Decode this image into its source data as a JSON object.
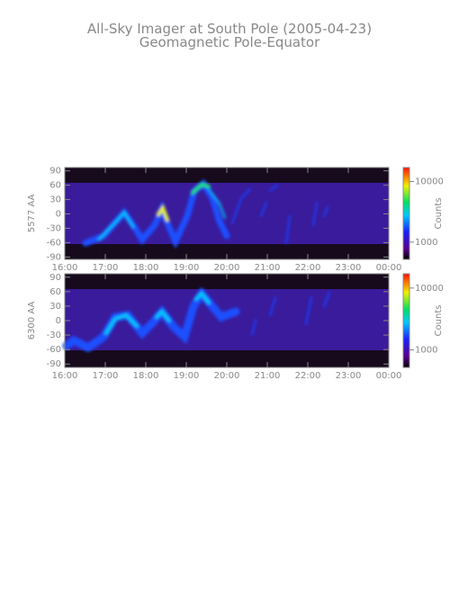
{
  "header": {
    "title": "All-Sky Imager at South Pole (2005-04-23)",
    "subtitle": "Geomagnetic Pole-Equator"
  },
  "chart_data": [
    {
      "type": "heatmap",
      "ylabel": "5577 AA",
      "xlim": [
        16,
        24
      ],
      "xticks": [
        {
          "value": 16,
          "label": "16:00"
        },
        {
          "value": 17,
          "label": "17:00"
        },
        {
          "value": 18,
          "label": "18:00"
        },
        {
          "value": 19,
          "label": "19:00"
        },
        {
          "value": 20,
          "label": "20:00"
        },
        {
          "value": 21,
          "label": "21:00"
        },
        {
          "value": 22,
          "label": "22:00"
        },
        {
          "value": 23,
          "label": "23:00"
        },
        {
          "value": 24,
          "label": "00:00"
        }
      ],
      "ylim": [
        -95,
        97
      ],
      "yticks": [
        90,
        60,
        30,
        0,
        -30,
        -60,
        -90
      ],
      "colorbar": {
        "label": "Counts",
        "log": true,
        "lim": [
          520,
          17000
        ],
        "ticks": [
          1000,
          10000
        ]
      }
    },
    {
      "type": "heatmap",
      "ylabel": "6300 AA",
      "xlim": [
        16,
        24
      ],
      "xticks": [
        {
          "value": 16,
          "label": "16:00"
        },
        {
          "value": 17,
          "label": "17:00"
        },
        {
          "value": 18,
          "label": "18:00"
        },
        {
          "value": 19,
          "label": "19:00"
        },
        {
          "value": 20,
          "label": "20:00"
        },
        {
          "value": 21,
          "label": "21:00"
        },
        {
          "value": 22,
          "label": "22:00"
        },
        {
          "value": 23,
          "label": "23:00"
        },
        {
          "value": 24,
          "label": "00:00"
        }
      ],
      "ylim": [
        -97,
        97
      ],
      "yticks": [
        90,
        60,
        30,
        0,
        -30,
        -60,
        -90
      ],
      "colorbar": {
        "label": "Counts",
        "log": true,
        "lim": [
          520,
          17000
        ],
        "ticks": [
          1000,
          10000
        ]
      }
    }
  ]
}
